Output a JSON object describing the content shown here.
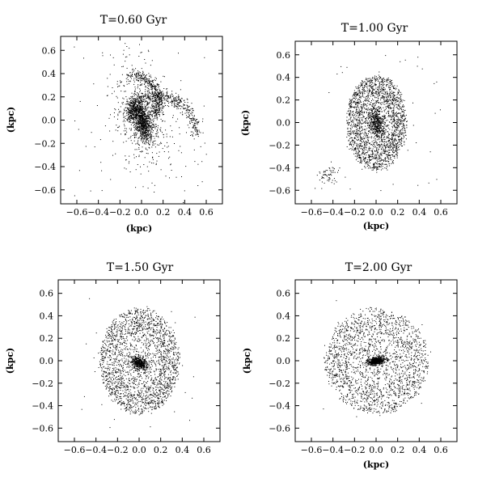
{
  "chart_data": [
    {
      "type": "scatter",
      "title": "T=0.60 Gyr",
      "xlabel": "(kpc)",
      "ylabel": "(kpc)",
      "xlim": [
        -0.75,
        0.75
      ],
      "ylim": [
        -0.72,
        0.72
      ],
      "xticks": [
        -0.6,
        -0.4,
        -0.2,
        0.0,
        0.2,
        0.4,
        0.6
      ],
      "yticks": [
        -0.6,
        -0.4,
        -0.2,
        0.0,
        0.2,
        0.4,
        0.6
      ],
      "xtick_labels": [
        "−0.6",
        "−0.4",
        "−0.2",
        "0.0",
        "0.2",
        "0.4",
        "0.6"
      ],
      "ytick_labels": [
        "−0.6",
        "−0.4",
        "−0.2",
        "0.0",
        "0.2",
        "0.4",
        "0.6"
      ],
      "grid": false,
      "marker_color": "#000000",
      "morphology": "bar-with-trailing-spiral-arms",
      "structure": {
        "core": {
          "center": [
            0.0,
            0.0
          ],
          "rx": 0.07,
          "ry": 0.17,
          "tilt_deg": 18
        },
        "arms": "two tidal arms sweeping to x≈-0.55 and x≈0.35",
        "extent": 0.42
      }
    },
    {
      "type": "scatter",
      "title": "T=1.00 Gyr",
      "xlabel": "(kpc)",
      "ylabel": "(kpc)",
      "xlim": [
        -0.75,
        0.75
      ],
      "ylim": [
        -0.72,
        0.72
      ],
      "xticks": [
        -0.6,
        -0.4,
        -0.2,
        0.0,
        0.2,
        0.4,
        0.6
      ],
      "yticks": [
        -0.6,
        -0.4,
        -0.2,
        0.0,
        0.2,
        0.4,
        0.6
      ],
      "xtick_labels": [
        "−0.6",
        "−0.4",
        "−0.2",
        "0.0",
        "0.2",
        "0.4",
        "0.6"
      ],
      "ytick_labels": [
        "−0.6",
        "−0.4",
        "−0.2",
        "0.0",
        "0.2",
        "0.4",
        "0.6"
      ],
      "grid": false,
      "marker_color": "#000000",
      "morphology": "ring-with-central-bar",
      "structure": {
        "core": {
          "center": [
            0.0,
            0.0
          ],
          "rx": 0.06,
          "ry": 0.13,
          "tilt_deg": 10
        },
        "disk_rx": 0.28,
        "disk_ry": 0.42,
        "extent": 0.44
      }
    },
    {
      "type": "scatter",
      "title": "T=1.50 Gyr",
      "xlabel": "",
      "ylabel": "(kpc)",
      "xlim": [
        -0.75,
        0.75
      ],
      "ylim": [
        -0.72,
        0.72
      ],
      "xticks": [
        -0.6,
        -0.4,
        -0.2,
        0.0,
        0.2,
        0.4,
        0.6
      ],
      "yticks": [
        -0.6,
        -0.4,
        -0.2,
        0.0,
        0.2,
        0.4,
        0.6
      ],
      "xtick_labels": [
        "−0.6",
        "−0.4",
        "−0.2",
        "0.0",
        "0.2",
        "0.4",
        "0.6"
      ],
      "ytick_labels": [
        "−0.6",
        "−0.4",
        "−0.2",
        "0.0",
        "0.2",
        "0.4",
        "0.6"
      ],
      "grid": false,
      "marker_color": "#000000",
      "morphology": "elliptical-disk-with-bar",
      "structure": {
        "core": {
          "center": [
            0.0,
            -0.02
          ],
          "rx": 0.08,
          "ry": 0.05,
          "tilt_deg": -30
        },
        "disk_rx": 0.37,
        "disk_ry": 0.47,
        "extent": 0.47
      }
    },
    {
      "type": "scatter",
      "title": "T=2.00 Gyr",
      "xlabel": "(kpc)",
      "ylabel": "(kpc)",
      "xlim": [
        -0.75,
        0.75
      ],
      "ylim": [
        -0.72,
        0.72
      ],
      "xticks": [
        -0.6,
        -0.4,
        -0.2,
        0.0,
        0.2,
        0.4,
        0.6
      ],
      "yticks": [
        -0.6,
        -0.4,
        -0.2,
        0.0,
        0.2,
        0.4,
        0.6
      ],
      "xtick_labels": [
        "−0.6",
        "−0.4",
        "−0.2",
        "0.0",
        "0.2",
        "0.4",
        "0.6"
      ],
      "ytick_labels": [
        "−0.6",
        "−0.4",
        "−0.2",
        "0.0",
        "0.2",
        "0.4",
        "0.6"
      ],
      "grid": false,
      "marker_color": "#000000",
      "morphology": "round-disk-with-compact-bar",
      "structure": {
        "core": {
          "center": [
            0.0,
            0.0
          ],
          "rx": 0.07,
          "ry": 0.03,
          "tilt_deg": 8
        },
        "disk_rx": 0.48,
        "disk_ry": 0.46,
        "extent": 0.5
      }
    }
  ]
}
